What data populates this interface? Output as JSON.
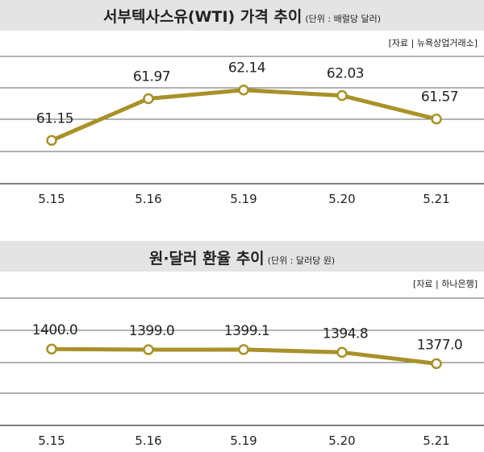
{
  "chart_data": [
    {
      "type": "line",
      "title": "서부텍사스유(WTI) 가격 추이",
      "unit_note": "(단위 : 배럴당 달러)",
      "source": "[자료 | 뉴욕상업거래소]",
      "categories": [
        "5.15",
        "5.16",
        "5.19",
        "5.20",
        "5.21"
      ],
      "series": [
        {
          "values": [
            61.15,
            61.97,
            62.14,
            62.03,
            61.57
          ]
        }
      ],
      "value_labels": [
        "61.15",
        "61.97",
        "62.14",
        "62.03",
        "61.57"
      ],
      "ylim": [
        60.3,
        62.8
      ],
      "grid": true,
      "line_color": "#a89128"
    },
    {
      "type": "line",
      "title": "원·달러 환율 추이",
      "unit_note": "(단위 : 달러당 원)",
      "source": "[자료 | 하나은행]",
      "categories": [
        "5.15",
        "5.16",
        "5.19",
        "5.20",
        "5.21"
      ],
      "series": [
        {
          "values": [
            1400.0,
            1399.0,
            1399.1,
            1394.8,
            1377.0
          ]
        }
      ],
      "value_labels": [
        "1400.0",
        "1399.0",
        "1399.1",
        "1394.8",
        "1377.0"
      ],
      "ylim": [
        1280,
        1480
      ],
      "grid": true,
      "line_color": "#a89128"
    }
  ],
  "colors": {
    "title_band": "#e4e4e4",
    "line": "#a89128",
    "grid": "#333333",
    "text": "#222222"
  }
}
